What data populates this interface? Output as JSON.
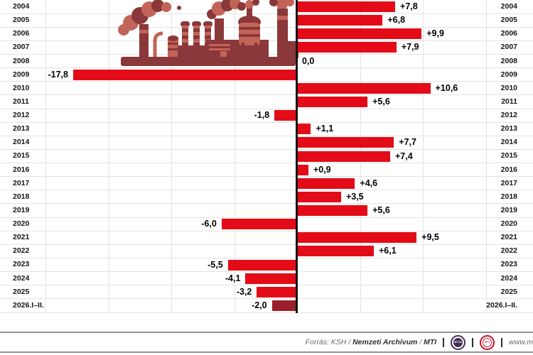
{
  "chart_data": {
    "type": "bar",
    "orientation": "horizontal",
    "categories": [
      "2004",
      "2005",
      "2006",
      "2007",
      "2008",
      "2009",
      "2010",
      "2011",
      "2012",
      "2013",
      "2014",
      "2015",
      "2016",
      "2017",
      "2018",
      "2019",
      "2020",
      "2021",
      "2022",
      "2023",
      "2024",
      "2025",
      "2026.I–II."
    ],
    "values": [
      7.8,
      6.8,
      9.9,
      7.9,
      0.0,
      -17.8,
      10.6,
      5.6,
      -1.8,
      1.1,
      7.7,
      7.4,
      0.9,
      4.6,
      3.5,
      5.6,
      -6.0,
      9.5,
      6.1,
      -5.5,
      -4.1,
      -3.2,
      -2.0
    ],
    "value_labels": [
      "+7,8",
      "+6,8",
      "+9,9",
      "+7,9",
      "0,0",
      "-17,8",
      "+10,6",
      "+5,6",
      "-1,8",
      "+1,1",
      "+7,7",
      "+7,4",
      "+0,9",
      "+4,6",
      "+3,5",
      "+5,6",
      "-6,0",
      "+9,5",
      "+6,1",
      "-5,5",
      "-4,1",
      "-3,2",
      "-2,0"
    ],
    "xlim": [
      -20.6,
      18.8
    ],
    "grid": true,
    "grid_step": 5,
    "grid_min": -20,
    "grid_max": 15,
    "legend": "none",
    "bar_color": "#e30b17",
    "final_bar_color": "#9a1f2b",
    "grid_color": "#e3e3e3",
    "axis_color": "#141414"
  },
  "illustration": {
    "name": "factory-with-smokestacks",
    "color_dark": "#8a3839",
    "color_light": "#c26457"
  },
  "footer": {
    "source_italic": "Forrás: KSH / ",
    "source_bold_1": "Nemzeti Archívum",
    "source_mid": " / ",
    "source_bold_2": "MTI",
    "mtva_logo_text": "MTVA",
    "mti_logo_text": "MTI",
    "website": "www.m"
  }
}
